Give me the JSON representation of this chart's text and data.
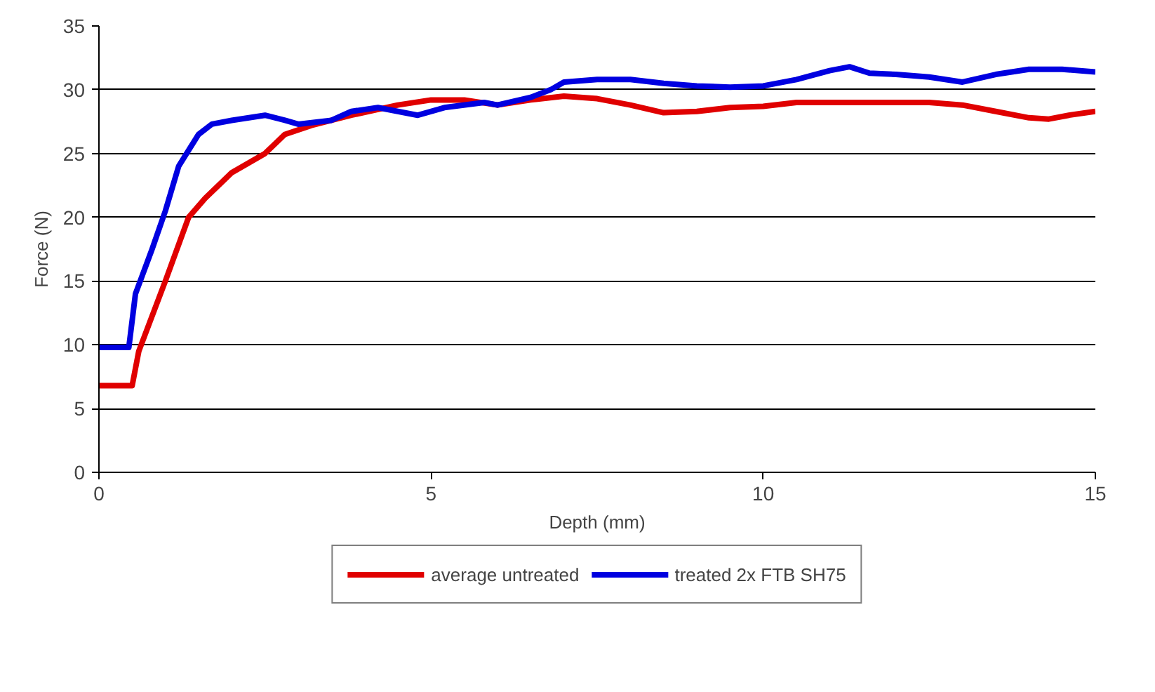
{
  "chart_data": {
    "type": "line",
    "xlabel": "Depth (mm)",
    "ylabel": "Force (N)",
    "xlim": [
      0,
      15
    ],
    "ylim": [
      0,
      35
    ],
    "xticks": [
      0,
      5,
      10,
      15
    ],
    "yticks": [
      0,
      5,
      10,
      15,
      20,
      25,
      30,
      35
    ],
    "grid": "y",
    "legend": "bottom",
    "marker": "none",
    "line_style": "solid",
    "series": [
      {
        "name": "average untreated",
        "color": "#e00000",
        "x": [
          0,
          0.5,
          0.6,
          1.0,
          1.35,
          1.6,
          2.0,
          2.5,
          2.8,
          3.2,
          3.8,
          4.5,
          5.0,
          5.5,
          6.0,
          6.5,
          7.0,
          7.5,
          8.0,
          8.5,
          9.0,
          9.5,
          10.0,
          10.5,
          11.0,
          12.0,
          12.5,
          13.0,
          13.5,
          14.0,
          14.3,
          14.6,
          15.0
        ],
        "values": [
          6.8,
          6.8,
          9.5,
          15,
          20,
          21.5,
          23.5,
          25,
          26.5,
          27.2,
          28,
          28.8,
          29.2,
          29.2,
          28.8,
          29.2,
          29.5,
          29.3,
          28.8,
          28.2,
          28.3,
          28.6,
          28.7,
          29.0,
          29.0,
          29.0,
          29.0,
          28.8,
          28.3,
          27.8,
          27.7,
          28.0,
          28.3
        ]
      },
      {
        "name": "treated 2x FTB SH75",
        "color": "#0000e0",
        "x": [
          0,
          0.45,
          0.55,
          0.8,
          1.0,
          1.2,
          1.5,
          1.7,
          2.0,
          2.5,
          2.8,
          3.0,
          3.5,
          3.8,
          4.2,
          4.5,
          4.8,
          5.2,
          5.8,
          6.0,
          6.5,
          6.8,
          7.0,
          7.5,
          8.0,
          8.5,
          9.0,
          9.5,
          10.0,
          10.5,
          11.0,
          11.3,
          11.6,
          12.0,
          12.5,
          13.0,
          13.5,
          14.0,
          14.5,
          15.0
        ],
        "values": [
          9.8,
          9.8,
          14,
          17.5,
          20.5,
          24,
          26.5,
          27.3,
          27.6,
          28.0,
          27.6,
          27.3,
          27.6,
          28.3,
          28.6,
          28.3,
          28.0,
          28.6,
          29.0,
          28.8,
          29.4,
          30.0,
          30.6,
          30.8,
          30.8,
          30.5,
          30.3,
          30.2,
          30.3,
          30.8,
          31.5,
          31.8,
          31.3,
          31.2,
          31.0,
          30.6,
          31.2,
          31.6,
          31.6,
          31.4
        ]
      }
    ]
  }
}
